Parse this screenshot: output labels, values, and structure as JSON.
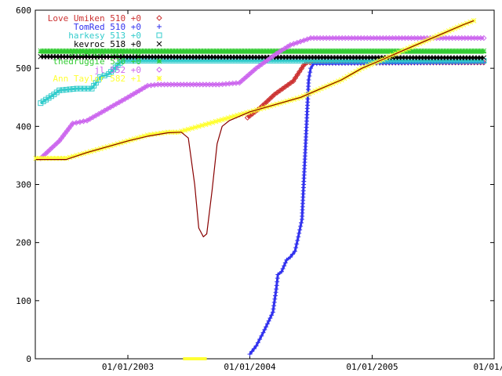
{
  "chart_data": {
    "type": "line",
    "title": "",
    "xlabel": "",
    "ylabel": "",
    "xlim": [
      "2002-03-30",
      "2006-01-01"
    ],
    "ylim": [
      0,
      600
    ],
    "grid": false,
    "legend_placement": "top-left",
    "y_ticks": [
      0,
      100,
      200,
      300,
      400,
      500,
      600
    ],
    "x_ticks": [
      {
        "date": "2003-01-01",
        "label": "01/01/2003"
      },
      {
        "date": "2004-01-01",
        "label": "01/01/2004"
      },
      {
        "date": "2005-01-01",
        "label": "01/01/2005"
      },
      {
        "date": "2006-01-01",
        "label": "01/01/20"
      }
    ],
    "series": [
      {
        "name": "Love Umiken 510 +0",
        "color": "#cc3333",
        "marker": "diamond",
        "points": [
          [
            "2003-12-25",
            415
          ],
          [
            "2004-02-01",
            432
          ],
          [
            "2004-03-15",
            455
          ],
          [
            "2004-05-10",
            478
          ],
          [
            "2004-06-10",
            505
          ],
          [
            "2004-06-20",
            510
          ],
          [
            "2005-12-01",
            510
          ]
        ]
      },
      {
        "name": "TomRed 510 +0",
        "color": "#3333ee",
        "marker": "plus",
        "points": [
          [
            "2004-01-01",
            8
          ],
          [
            "2004-01-20",
            22
          ],
          [
            "2004-02-10",
            45
          ],
          [
            "2004-03-10",
            80
          ],
          [
            "2004-03-20",
            120
          ],
          [
            "2004-03-25",
            145
          ],
          [
            "2004-04-05",
            150
          ],
          [
            "2004-04-20",
            170
          ],
          [
            "2004-05-01",
            175
          ],
          [
            "2004-05-15",
            185
          ],
          [
            "2004-05-25",
            210
          ],
          [
            "2004-06-05",
            240
          ],
          [
            "2004-06-10",
            300
          ],
          [
            "2004-06-15",
            360
          ],
          [
            "2004-06-20",
            420
          ],
          [
            "2004-06-25",
            480
          ],
          [
            "2004-07-01",
            500
          ],
          [
            "2004-07-10",
            508
          ],
          [
            "2005-12-01",
            510
          ]
        ]
      },
      {
        "name": "harkesy 513 +0",
        "color": "#33cccc",
        "marker": "square",
        "points": [
          [
            "2002-04-15",
            440
          ],
          [
            "2002-05-25",
            455
          ],
          [
            "2002-06-10",
            462
          ],
          [
            "2002-08-01",
            465
          ],
          [
            "2002-09-15",
            465
          ],
          [
            "2002-10-10",
            485
          ],
          [
            "2002-11-05",
            490
          ],
          [
            "2002-12-15",
            513
          ],
          [
            "2005-12-01",
            513
          ]
        ]
      },
      {
        "name": "kevroc 518 +0",
        "color": "#000000",
        "marker": "cross",
        "points": [
          [
            "2002-04-15",
            520
          ],
          [
            "2005-12-01",
            518
          ]
        ]
      },
      {
        "name": "STEAMER 527 +0",
        "color": "#33cc33",
        "marker": "dash",
        "points": [
          [
            "2002-04-15",
            527
          ],
          [
            "2005-12-01",
            527
          ]
        ]
      },
      {
        "name": "thedruggie 530 +0",
        "color": "#33cc33",
        "marker": "star",
        "points": [
          [
            "2002-04-15",
            530
          ],
          [
            "2005-12-01",
            530
          ]
        ]
      },
      {
        "name": "jl 552 +0",
        "color": "#cc66ee",
        "marker": "diamond",
        "points": [
          [
            "2002-04-15",
            345
          ],
          [
            "2002-06-10",
            375
          ],
          [
            "2002-07-20",
            405
          ],
          [
            "2002-09-01",
            410
          ],
          [
            "2002-11-01",
            430
          ],
          [
            "2003-01-01",
            450
          ],
          [
            "2003-03-01",
            470
          ],
          [
            "2003-04-01",
            472
          ],
          [
            "2003-10-01",
            472
          ],
          [
            "2003-12-01",
            475
          ],
          [
            "2004-01-20",
            500
          ],
          [
            "2004-03-20",
            525
          ],
          [
            "2004-05-01",
            540
          ],
          [
            "2004-07-01",
            552
          ],
          [
            "2005-12-01",
            552
          ]
        ]
      },
      {
        "name": "Ann Taylor 582 +1",
        "color": "#ffff33",
        "marker": "star",
        "points": [
          [
            "2002-04-01",
            345
          ],
          [
            "2002-07-01",
            345
          ],
          [
            "2002-09-01",
            355
          ],
          [
            "2002-11-01",
            365
          ],
          [
            "2003-01-01",
            375
          ],
          [
            "2003-03-01",
            385
          ],
          [
            "2003-05-01",
            390
          ],
          [
            "2003-06-01",
            390
          ],
          [
            "2003-07-01",
            395
          ],
          [
            "2003-09-01",
            405
          ],
          [
            "2003-10-01",
            410
          ],
          [
            "2004-01-01",
            425
          ],
          [
            "2004-02-01",
            430
          ],
          [
            "2004-04-01",
            440
          ],
          [
            "2004-06-01",
            450
          ],
          [
            "2004-08-01",
            465
          ],
          [
            "2004-10-01",
            480
          ],
          [
            "2004-12-01",
            500
          ],
          [
            "2005-02-01",
            515
          ],
          [
            "2005-04-01",
            530
          ],
          [
            "2005-06-01",
            545
          ],
          [
            "2005-08-01",
            560
          ],
          [
            "2005-10-01",
            575
          ],
          [
            "2005-11-01",
            582
          ]
        ]
      },
      {
        "name": "",
        "color": "#880000",
        "marker": "",
        "points": [
          [
            "2002-04-01",
            343
          ],
          [
            "2002-07-01",
            343
          ],
          [
            "2002-09-01",
            355
          ],
          [
            "2002-11-01",
            365
          ],
          [
            "2003-01-01",
            375
          ],
          [
            "2003-03-01",
            383
          ],
          [
            "2003-05-01",
            389
          ],
          [
            "2003-06-10",
            390
          ],
          [
            "2003-07-01",
            380
          ],
          [
            "2003-07-20",
            300
          ],
          [
            "2003-08-01",
            225
          ],
          [
            "2003-08-15",
            210
          ],
          [
            "2003-08-25",
            215
          ],
          [
            "2003-09-10",
            290
          ],
          [
            "2003-09-25",
            370
          ],
          [
            "2003-10-10",
            400
          ],
          [
            "2003-11-01",
            410
          ],
          [
            "2004-01-01",
            425
          ],
          [
            "2004-02-01",
            430
          ],
          [
            "2004-04-01",
            440
          ],
          [
            "2004-06-01",
            450
          ],
          [
            "2004-08-01",
            465
          ],
          [
            "2004-10-01",
            480
          ],
          [
            "2004-12-01",
            500
          ],
          [
            "2005-02-01",
            515
          ],
          [
            "2005-04-01",
            530
          ],
          [
            "2005-06-01",
            545
          ],
          [
            "2005-08-01",
            560
          ],
          [
            "2005-10-01",
            575
          ],
          [
            "2005-11-01",
            582
          ]
        ]
      }
    ],
    "zero_segment": {
      "color": "#ffff33",
      "from": "2003-06-15",
      "to": "2003-08-25",
      "y": 0
    }
  }
}
